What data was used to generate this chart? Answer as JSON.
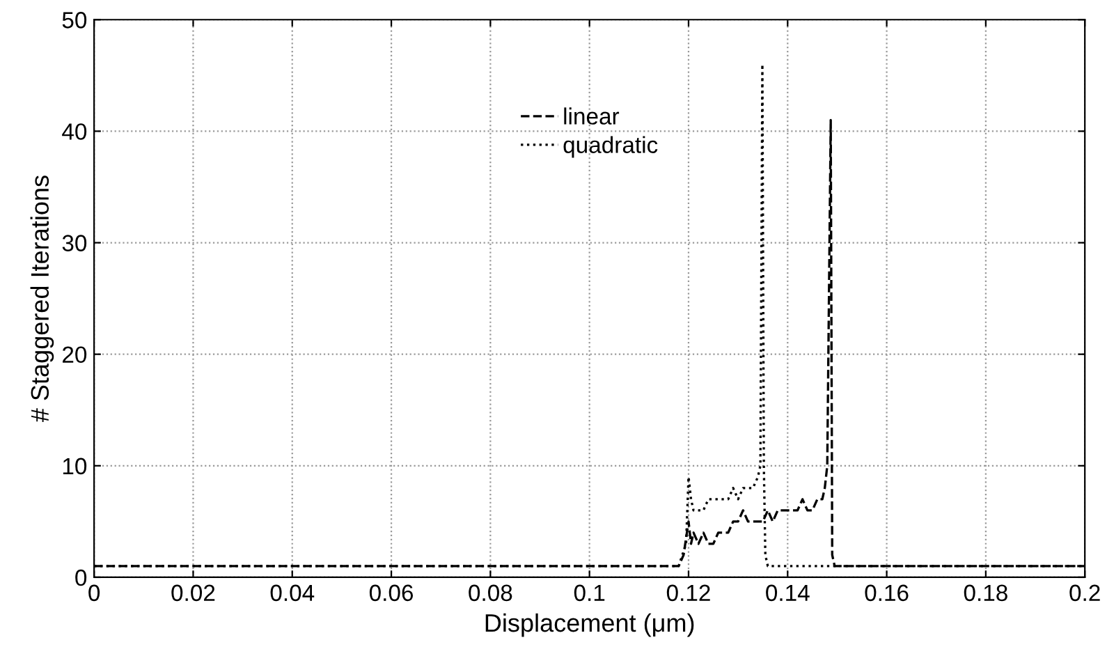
{
  "chart_data": {
    "type": "line",
    "xlabel": "Displacement (μm)",
    "ylabel": "# Staggered Iterations",
    "xlim": [
      0,
      0.2
    ],
    "ylim": [
      0,
      50
    ],
    "xticks": [
      0,
      0.02,
      0.04,
      0.06,
      0.08,
      0.1,
      0.12,
      0.14,
      0.16,
      0.18,
      0.2
    ],
    "yticks": [
      0,
      10,
      20,
      30,
      40,
      50
    ],
    "grid": true,
    "legend": "top",
    "marker": "none",
    "series": [
      {
        "name": "linear",
        "color": "#000000",
        "line_style": "dashed",
        "x": [
          0,
          0.118,
          0.119,
          0.12,
          0.1205,
          0.121,
          0.122,
          0.123,
          0.124,
          0.125,
          0.126,
          0.127,
          0.128,
          0.129,
          0.13,
          0.131,
          0.132,
          0.133,
          0.134,
          0.135,
          0.136,
          0.137,
          0.138,
          0.139,
          0.14,
          0.141,
          0.142,
          0.143,
          0.144,
          0.145,
          0.146,
          0.147,
          0.1475,
          0.148,
          0.1487,
          0.149,
          0.1495,
          0.2
        ],
        "values": [
          1,
          1,
          2,
          5,
          3,
          4,
          3,
          4,
          3,
          3,
          4,
          4,
          4,
          5,
          5,
          6,
          5,
          5,
          5,
          5,
          6,
          5,
          6,
          6,
          6,
          6,
          6,
          7,
          6,
          6,
          7,
          7,
          8,
          10,
          41,
          2,
          1,
          1
        ]
      },
      {
        "name": "quadratic",
        "color": "#000000",
        "line_style": "dotted",
        "x": [
          0,
          0.118,
          0.1195,
          0.12,
          0.1205,
          0.121,
          0.122,
          0.123,
          0.124,
          0.125,
          0.126,
          0.127,
          0.128,
          0.129,
          0.13,
          0.131,
          0.132,
          0.133,
          0.134,
          0.1345,
          0.1349,
          0.1352,
          0.1355,
          0.136,
          0.137,
          0.2
        ],
        "values": [
          1,
          1,
          3,
          9,
          7,
          6,
          6,
          6,
          7,
          7,
          7,
          7,
          7,
          8,
          7,
          8,
          8,
          8,
          9,
          10,
          46,
          10,
          2,
          1,
          1,
          1
        ]
      }
    ]
  }
}
